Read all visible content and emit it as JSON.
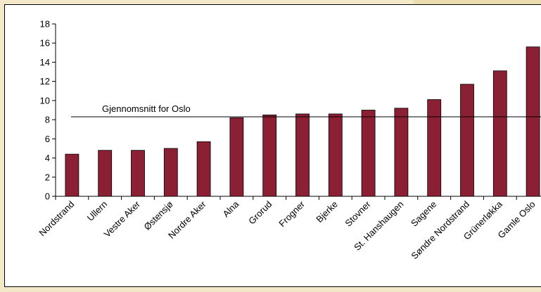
{
  "chart_data": {
    "type": "bar",
    "title": "",
    "xlabel": "",
    "ylabel": "",
    "ylim": [
      0,
      18
    ],
    "yticks": [
      0,
      2,
      4,
      6,
      8,
      10,
      12,
      14,
      16,
      18
    ],
    "grid": false,
    "bar_color": "#8b1f33",
    "categories": [
      "Nordstrand",
      "Ullern",
      "Vestre Aker",
      "Østensjø",
      "Nordre Aker",
      "Alna",
      "Grorud",
      "Frogner",
      "Bjerke",
      "Stovner",
      "St. Hanshaugen",
      "Sagene",
      "Søndre Nordstrand",
      "Grünerløkka",
      "Gamle Oslo"
    ],
    "values": [
      4.4,
      4.8,
      4.8,
      5.0,
      5.7,
      8.2,
      8.5,
      8.6,
      8.6,
      9.0,
      9.2,
      10.1,
      11.7,
      13.1,
      15.6
    ],
    "reference_line": {
      "label": "Gjennomsnitt for Oslo",
      "value": 8.3
    }
  },
  "colors": {
    "background": "#f3e9c8",
    "panel": "#ffffff",
    "bar": "#8b1f33"
  }
}
